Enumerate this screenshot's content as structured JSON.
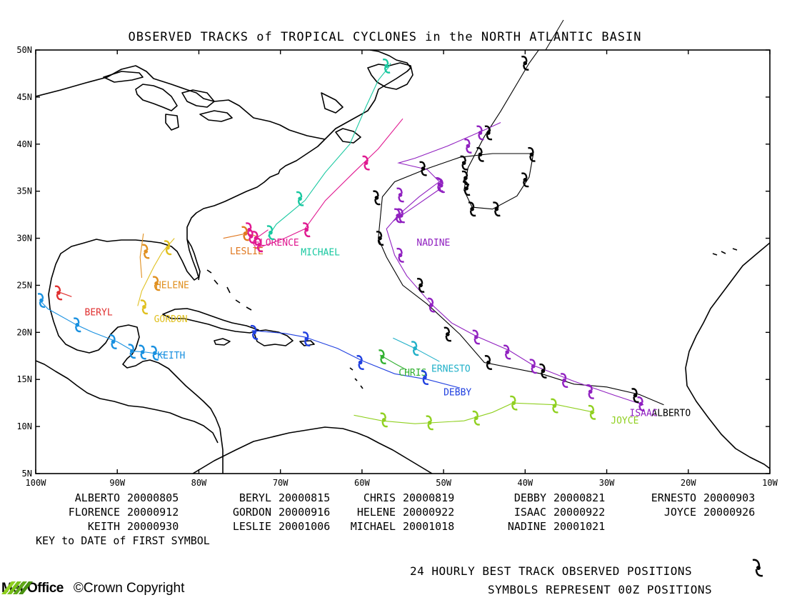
{
  "title": "OBSERVED TRACKS of TROPICAL CYCLONES in the NORTH ATLANTIC BASIN",
  "map": {
    "lon_range": [
      -100,
      -10
    ],
    "lat_range": [
      5,
      50
    ],
    "lon_ticks": [
      {
        "v": -100,
        "t": "100W"
      },
      {
        "v": -90,
        "t": "90W"
      },
      {
        "v": -80,
        "t": "80W"
      },
      {
        "v": -70,
        "t": "70W"
      },
      {
        "v": -60,
        "t": "60W"
      },
      {
        "v": -50,
        "t": "50W"
      },
      {
        "v": -40,
        "t": "40W"
      },
      {
        "v": -30,
        "t": "30W"
      },
      {
        "v": -20,
        "t": "20W"
      },
      {
        "v": -10,
        "t": "10W"
      }
    ],
    "lat_ticks": [
      {
        "v": 5,
        "t": "5N"
      },
      {
        "v": 10,
        "t": "10N"
      },
      {
        "v": 15,
        "t": "15N"
      },
      {
        "v": 20,
        "t": "20N"
      },
      {
        "v": 25,
        "t": "25N"
      },
      {
        "v": 30,
        "t": "30N"
      },
      {
        "v": 35,
        "t": "35N"
      },
      {
        "v": 40,
        "t": "40N"
      },
      {
        "v": 45,
        "t": "45N"
      },
      {
        "v": 50,
        "t": "50N"
      }
    ]
  },
  "chart_data": {
    "type": "map-tracks",
    "storms": [
      {
        "name": "ALBERTO",
        "color": "#000000",
        "label_at": [
          -24.5,
          11.1
        ],
        "track": [
          [
            -23,
            12.3
          ],
          [
            -26,
            13.4
          ],
          [
            -30,
            14.2
          ],
          [
            -34,
            14.5
          ],
          [
            -38,
            15.6
          ],
          [
            -45,
            16.8
          ],
          [
            -48,
            19.8
          ],
          [
            -52,
            23
          ],
          [
            -55,
            25
          ],
          [
            -57,
            28
          ],
          [
            -58,
            30
          ],
          [
            -57.5,
            34.4
          ],
          [
            -56,
            36
          ],
          [
            -52,
            37.4
          ],
          [
            -48,
            38.6
          ],
          [
            -44,
            39
          ],
          [
            -39,
            39
          ],
          [
            -39.5,
            36.5
          ],
          [
            -41,
            34.5
          ],
          [
            -44,
            33.1
          ],
          [
            -46.5,
            33.3
          ],
          [
            -47.5,
            35.1
          ],
          [
            -47,
            37.5
          ],
          [
            -45,
            40.8
          ],
          [
            -43,
            43.5
          ],
          [
            -39.5,
            48.6
          ],
          [
            -35,
            54
          ]
        ],
        "points": [
          [
            -26.5,
            13.3
          ],
          [
            -37.8,
            15.9
          ],
          [
            -44.5,
            16.8
          ],
          [
            -49.5,
            19.8
          ],
          [
            -52.8,
            25
          ],
          [
            -57.8,
            30
          ],
          [
            -58.2,
            34.3
          ],
          [
            -52.5,
            37.4
          ],
          [
            -47.5,
            38
          ],
          [
            -45.5,
            38.9
          ],
          [
            -39.2,
            38.9
          ],
          [
            -40,
            36.2
          ],
          [
            -43.5,
            33.1
          ],
          [
            -46.5,
            33.1
          ],
          [
            -47.3,
            36.4
          ],
          [
            -47.2,
            35.3
          ],
          [
            -44.5,
            41.2
          ],
          [
            -40,
            48.6
          ]
        ]
      },
      {
        "name": "BERYL",
        "color": "#e03030",
        "label_at": [
          -94,
          21.8
        ],
        "track": [
          [
            -97.2,
            24.3
          ],
          [
            -95.6,
            23.8
          ]
        ],
        "points": [
          [
            -97.2,
            24.2
          ]
        ]
      },
      {
        "name": "CHRIS",
        "color": "#30b030",
        "label_at": [
          -55.5,
          15.4
        ],
        "track": [
          [
            -57.8,
            17.6
          ],
          [
            -55.8,
            16.6
          ],
          [
            -54.5,
            16
          ]
        ],
        "points": [
          [
            -57.5,
            17.4
          ]
        ]
      },
      {
        "name": "DEBBY",
        "color": "#2040e0",
        "label_at": [
          -50,
          13.3
        ],
        "track": [
          [
            -73.5,
            20.2
          ],
          [
            -69.5,
            19.9
          ],
          [
            -67,
            19.5
          ],
          [
            -63,
            18.3
          ],
          [
            -60,
            17
          ],
          [
            -56,
            15.6
          ],
          [
            -52,
            15
          ],
          [
            -48,
            14.1
          ]
        ],
        "points": [
          [
            -73.2,
            20
          ],
          [
            -66.8,
            19.3
          ],
          [
            -60.2,
            16.8
          ],
          [
            -52.3,
            15.2
          ]
        ]
      },
      {
        "name": "ERNESTO",
        "color": "#20b0c8",
        "label_at": [
          -51.5,
          15.8
        ],
        "track": [
          [
            -56.2,
            19.4
          ],
          [
            -53.5,
            18.3
          ],
          [
            -50.5,
            16.9
          ]
        ],
        "points": [
          [
            -53.5,
            18.3
          ]
        ]
      },
      {
        "name": "FLORENCE",
        "color": "#e01890",
        "label_at": [
          -73.2,
          29.2
        ],
        "track": [
          [
            -71.5,
            30.9
          ],
          [
            -72.8,
            30.1
          ],
          [
            -73.4,
            29.6
          ],
          [
            -73,
            28.9
          ],
          [
            -69.5,
            30
          ],
          [
            -67,
            31
          ],
          [
            -64.5,
            34
          ],
          [
            -61,
            37
          ],
          [
            -58,
            39.5
          ],
          [
            -55,
            42.7
          ]
        ],
        "points": [
          [
            -73.8,
            30.9
          ],
          [
            -73.6,
            30.2
          ],
          [
            -73,
            30
          ],
          [
            -72.6,
            29.3
          ],
          [
            -66.8,
            30.9
          ],
          [
            -59.5,
            38
          ]
        ]
      },
      {
        "name": "GORDON",
        "color": "#e0c020",
        "label_at": [
          -85.5,
          21.1
        ],
        "track": [
          [
            -87.5,
            22.8
          ],
          [
            -87,
            24.4
          ],
          [
            -85.5,
            27
          ],
          [
            -84.5,
            28.5
          ],
          [
            -83,
            30
          ]
        ],
        "points": [
          [
            -86.7,
            22.7
          ],
          [
            -83.8,
            29
          ]
        ]
      },
      {
        "name": "HELENE",
        "color": "#e09020",
        "label_at": [
          -85.3,
          24.7
        ],
        "track": [
          [
            -87,
            25.8
          ],
          [
            -87.2,
            28
          ],
          [
            -86.8,
            30.5
          ]
        ],
        "points": [
          [
            -86.5,
            28.6
          ],
          [
            -85.2,
            25.2
          ]
        ]
      },
      {
        "name": "ISAAC",
        "color": "#9020c0",
        "label_at": [
          -27.2,
          11.1
        ],
        "track": [
          [
            -25.5,
            12.3
          ],
          [
            -29,
            13.3
          ],
          [
            -34,
            14.8
          ],
          [
            -39,
            16.5
          ],
          [
            -42,
            18.1
          ],
          [
            -46,
            19.6
          ],
          [
            -49,
            21
          ],
          [
            -51.5,
            23
          ],
          [
            -54.5,
            26
          ],
          [
            -56,
            28.2
          ],
          [
            -57,
            31
          ],
          [
            -55.5,
            32.5
          ],
          [
            -53,
            34.4
          ],
          [
            -51,
            35.7
          ],
          [
            -50.5,
            36
          ],
          [
            -52,
            37.3
          ],
          [
            -55.5,
            38
          ],
          [
            -53.5,
            38.5
          ],
          [
            -49.5,
            39.8
          ],
          [
            -45,
            41.5
          ],
          [
            -43,
            42.3
          ]
        ],
        "points": [
          [
            -25.8,
            12.4
          ],
          [
            -32,
            13.7
          ],
          [
            -35.2,
            14.9
          ],
          [
            -39,
            16.4
          ],
          [
            -42.2,
            17.9
          ],
          [
            -46,
            19.5
          ],
          [
            -51.5,
            22.9
          ],
          [
            -55.3,
            28.2
          ],
          [
            -55.2,
            32.4
          ],
          [
            -55.3,
            34.6
          ],
          [
            -50.5,
            35.7
          ],
          [
            -47,
            39.8
          ],
          [
            -45.5,
            41.2
          ]
        ]
      },
      {
        "name": "JOYCE",
        "color": "#90d020",
        "label_at": [
          -29.5,
          10.3
        ],
        "track": [
          [
            -61,
            11.2
          ],
          [
            -57.5,
            10.6
          ],
          [
            -53.5,
            10.3
          ],
          [
            -47.5,
            10.6
          ],
          [
            -44,
            11.5
          ],
          [
            -41.5,
            12.5
          ],
          [
            -36,
            12.3
          ],
          [
            -31.5,
            11.5
          ]
        ],
        "points": [
          [
            -57.3,
            10.7
          ],
          [
            -51.7,
            10.4
          ],
          [
            -46,
            10.9
          ],
          [
            -41.4,
            12.5
          ],
          [
            -36.4,
            12.2
          ],
          [
            -31.8,
            11.5
          ]
        ]
      },
      {
        "name": "KEITH",
        "color": "#1890e0",
        "label_at": [
          -85.1,
          17.2
        ],
        "track": [
          [
            -99.5,
            23.4
          ],
          [
            -98.5,
            22.5
          ],
          [
            -95,
            20.8
          ],
          [
            -93,
            20
          ],
          [
            -90,
            19
          ],
          [
            -88,
            18
          ],
          [
            -86.5,
            17.9
          ],
          [
            -84,
            17.6
          ]
        ],
        "points": [
          [
            -99.3,
            23.4
          ],
          [
            -94.9,
            20.8
          ],
          [
            -90.5,
            19
          ],
          [
            -88.2,
            18
          ],
          [
            -86.9,
            17.9
          ],
          [
            -85.4,
            17.8
          ]
        ]
      },
      {
        "name": "LESLIE",
        "color": "#e07820",
        "label_at": [
          -76.2,
          28.3
        ],
        "track": [
          [
            -77,
            30
          ],
          [
            -74.2,
            30.5
          ],
          [
            -72.8,
            30.2
          ]
        ],
        "points": [
          [
            -74.3,
            30.5
          ]
        ]
      },
      {
        "name": "MICHAEL",
        "color": "#18c8a0",
        "label_at": [
          -67.5,
          28.2
        ],
        "track": [
          [
            -71.5,
            30.2
          ],
          [
            -70.5,
            31.5
          ],
          [
            -67,
            34
          ],
          [
            -64.5,
            37
          ],
          [
            -61.5,
            40
          ],
          [
            -59.5,
            44
          ],
          [
            -58,
            46.8
          ],
          [
            -56.7,
            48.2
          ],
          [
            -56.5,
            48.6
          ]
        ],
        "points": [
          [
            -71.2,
            30.6
          ],
          [
            -67.6,
            34.2
          ],
          [
            -57,
            48.3
          ]
        ]
      },
      {
        "name": "NADINE",
        "color": "#9020c0",
        "label_at": [
          -53.3,
          29.2
        ],
        "track": [
          [
            -56.2,
            31.8
          ],
          [
            -53,
            33.7
          ],
          [
            -50.5,
            35.2
          ]
        ],
        "points": [
          [
            -55.6,
            32.4
          ],
          [
            -50.3,
            35.6
          ]
        ]
      }
    ],
    "key": [
      {
        "name": "ALBERTO",
        "date": "20000805"
      },
      {
        "name": "BERYL",
        "date": "20000815"
      },
      {
        "name": "CHRIS",
        "date": "20000819"
      },
      {
        "name": "DEBBY",
        "date": "20000821"
      },
      {
        "name": "ERNESTO",
        "date": "20000903"
      },
      {
        "name": "FLORENCE",
        "date": "20000912"
      },
      {
        "name": "GORDON",
        "date": "20000916"
      },
      {
        "name": "HELENE",
        "date": "20000922"
      },
      {
        "name": "ISAAC",
        "date": "20000922"
      },
      {
        "name": "JOYCE",
        "date": "20000926"
      },
      {
        "name": "KEITH",
        "date": "20000930"
      },
      {
        "name": "LESLIE",
        "date": "20001006"
      },
      {
        "name": "MICHAEL",
        "date": "20001018"
      },
      {
        "name": "NADINE",
        "date": "20001021"
      }
    ]
  },
  "footer": {
    "key_caption": "KEY to DATE of FIRST SYMBOL",
    "line1": "24 HOURLY BEST TRACK OBSERVED POSITIONS",
    "line2": "SYMBOLS REPRESENT 00Z POSITIONS",
    "brand": "Met Office",
    "copyright": "©Crown Copyright"
  }
}
